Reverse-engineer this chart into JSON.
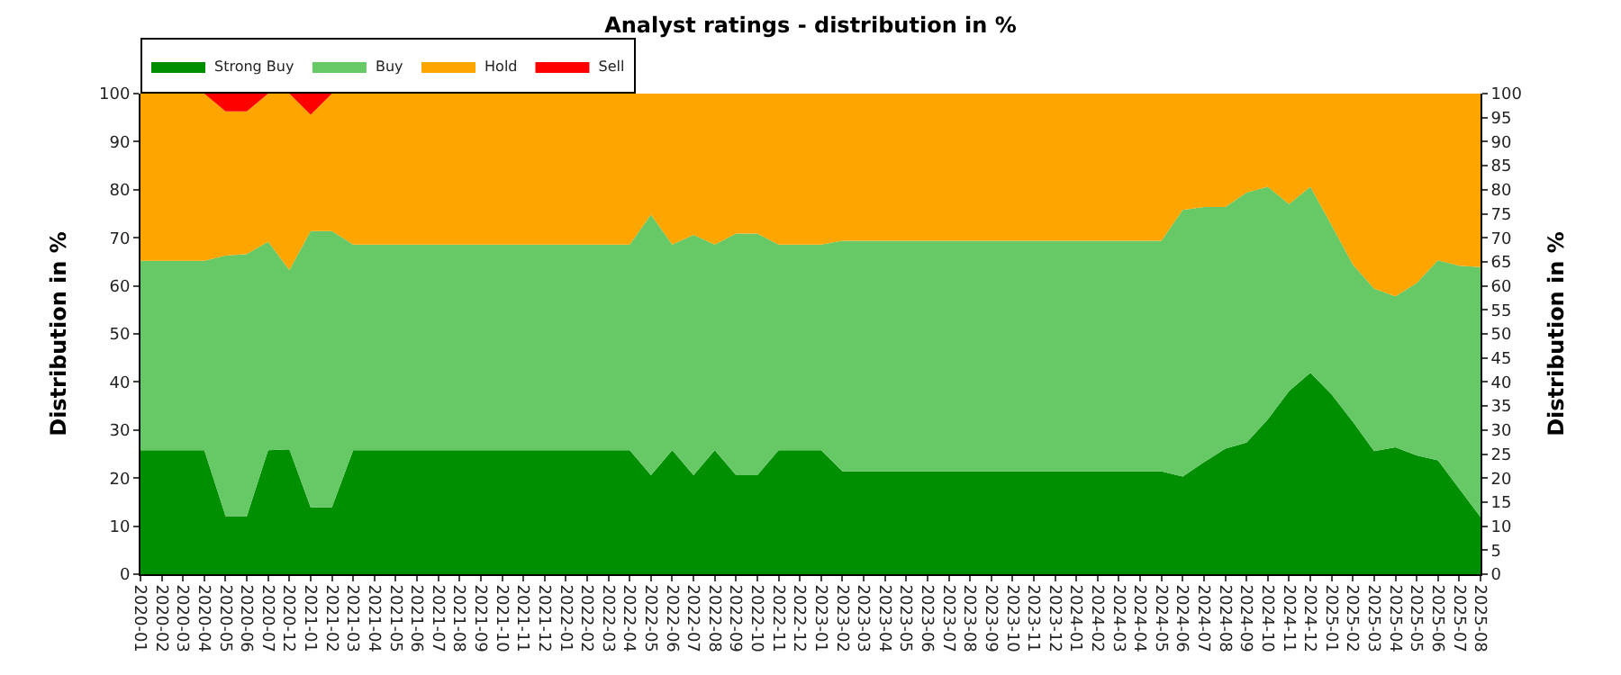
{
  "chart_data": {
    "type": "area",
    "stacked": true,
    "title": "Analyst ratings - distribution in %",
    "ylabel": "Distribution in %",
    "y2label": "Distribution in %",
    "categories": [
      "2020-01",
      "2020-02",
      "2020-03",
      "2020-04",
      "2020-05",
      "2020-06",
      "2020-07",
      "2020-12",
      "2021-01",
      "2021-02",
      "2021-03",
      "2021-04",
      "2021-05",
      "2021-06",
      "2021-07",
      "2021-08",
      "2021-09",
      "2021-10",
      "2021-11",
      "2021-12",
      "2022-01",
      "2022-02",
      "2022-03",
      "2022-04",
      "2022-05",
      "2022-06",
      "2022-07",
      "2022-08",
      "2022-09",
      "2022-10",
      "2022-11",
      "2022-12",
      "2023-01",
      "2023-02",
      "2023-03",
      "2023-04",
      "2023-05",
      "2023-06",
      "2023-07",
      "2023-08",
      "2023-09",
      "2023-10",
      "2023-11",
      "2023-12",
      "2024-01",
      "2024-02",
      "2024-03",
      "2024-04",
      "2024-05",
      "2024-06",
      "2024-07",
      "2024-08",
      "2024-09",
      "2024-10",
      "2024-11",
      "2024-12",
      "2025-01",
      "2025-02",
      "2025-03",
      "2025-04",
      "2025-05",
      "2025-06",
      "2025-07",
      "2025-08"
    ],
    "series": [
      {
        "name": "Strong Buy",
        "color": "#008f00",
        "values": [
          25.8,
          25.8,
          25.8,
          25.8,
          12.1,
          12.1,
          25.8,
          26.0,
          13.9,
          13.9,
          25.8,
          25.8,
          25.8,
          25.8,
          25.8,
          25.8,
          25.8,
          25.8,
          25.8,
          25.8,
          25.8,
          25.8,
          25.8,
          25.8,
          20.6,
          25.8,
          20.6,
          25.8,
          20.6,
          20.6,
          25.8,
          25.8,
          25.8,
          21.4,
          21.4,
          21.4,
          21.4,
          21.4,
          21.4,
          21.4,
          21.4,
          21.4,
          21.4,
          21.4,
          21.4,
          21.4,
          21.4,
          21.4,
          21.4,
          20.3,
          23.3,
          26.1,
          27.4,
          32.2,
          38.1,
          41.9,
          37.4,
          31.7,
          25.6,
          26.4,
          24.7,
          23.7,
          17.8,
          11.9
        ]
      },
      {
        "name": "Buy",
        "color": "#66c966",
        "values": [
          39.4,
          39.4,
          39.4,
          39.4,
          54.2,
          54.5,
          43.4,
          37.3,
          57.5,
          57.5,
          42.8,
          42.8,
          42.8,
          42.8,
          42.8,
          42.8,
          42.8,
          42.8,
          42.8,
          42.8,
          42.8,
          42.8,
          42.8,
          42.8,
          54.2,
          42.8,
          50.0,
          42.8,
          50.3,
          50.3,
          42.8,
          42.8,
          42.8,
          48.0,
          48.0,
          48.0,
          48.0,
          48.0,
          48.0,
          48.0,
          48.0,
          48.0,
          48.0,
          48.0,
          48.0,
          48.0,
          48.0,
          48.0,
          48.0,
          55.5,
          53.1,
          50.3,
          52.0,
          48.4,
          38.9,
          38.7,
          35.2,
          32.7,
          33.8,
          31.4,
          35.9,
          41.6,
          46.4,
          52.0
        ]
      },
      {
        "name": "Hold",
        "color": "#ffa500",
        "values": [
          34.8,
          34.8,
          34.8,
          34.8,
          30.0,
          29.7,
          30.8,
          36.7,
          24.2,
          28.6,
          31.4,
          31.4,
          31.4,
          31.4,
          31.4,
          31.4,
          31.4,
          31.4,
          31.4,
          31.4,
          31.4,
          31.4,
          31.4,
          31.4,
          25.2,
          31.4,
          29.4,
          31.4,
          29.1,
          29.1,
          31.4,
          31.4,
          31.4,
          30.6,
          30.6,
          30.6,
          30.6,
          30.6,
          30.6,
          30.6,
          30.6,
          30.6,
          30.6,
          30.6,
          30.6,
          30.6,
          30.6,
          30.6,
          30.6,
          24.2,
          23.6,
          23.6,
          20.6,
          19.4,
          23.0,
          19.4,
          27.4,
          35.6,
          40.6,
          42.2,
          39.4,
          34.7,
          35.8,
          36.1
        ]
      },
      {
        "name": "Sell",
        "color": "#ff0000",
        "values": [
          0,
          0,
          0,
          0,
          3.7,
          3.7,
          0,
          0,
          4.4,
          0,
          0,
          0,
          0,
          0,
          0,
          0,
          0,
          0,
          0,
          0,
          0,
          0,
          0,
          0,
          0,
          0,
          0,
          0,
          0,
          0,
          0,
          0,
          0,
          0,
          0,
          0,
          0,
          0,
          0,
          0,
          0,
          0,
          0,
          0,
          0,
          0,
          0,
          0,
          0,
          0,
          0,
          0,
          0,
          0,
          0,
          0,
          0,
          0,
          0,
          0,
          0,
          0,
          0,
          0
        ]
      }
    ],
    "ylim": [
      0,
      100
    ],
    "yticks": [
      0,
      10,
      20,
      30,
      40,
      50,
      60,
      70,
      80,
      90,
      100
    ],
    "y2lim": [
      0,
      100
    ],
    "y2ticks": [
      0,
      5,
      10,
      15,
      20,
      25,
      30,
      35,
      40,
      45,
      50,
      55,
      60,
      65,
      70,
      75,
      80,
      85,
      90,
      95,
      100
    ],
    "grid": "y",
    "legend": "top left"
  }
}
